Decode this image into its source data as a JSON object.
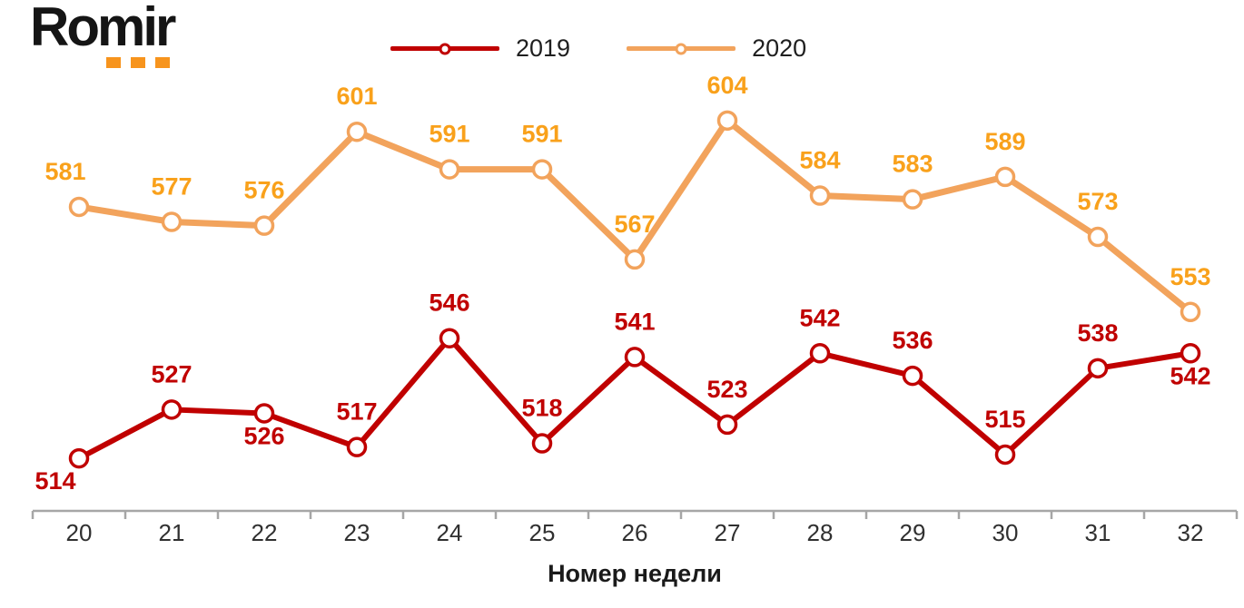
{
  "logo": {
    "text": "Romir",
    "dots_color": "#F7941D"
  },
  "chart_data": {
    "type": "line",
    "title": "",
    "xlabel": "Номер недели",
    "ylabel": "",
    "categories": [
      "20",
      "21",
      "22",
      "23",
      "24",
      "25",
      "26",
      "27",
      "28",
      "29",
      "30",
      "31",
      "32"
    ],
    "ylim": [
      500,
      610
    ],
    "grid": false,
    "legend_position": "top-center",
    "axis_color": "#A6A6A6",
    "tick_label_color": "#303030",
    "series": [
      {
        "name": "2019",
        "color": "#C00000",
        "label_color": "#C00000",
        "line_width": 6,
        "values": [
          514,
          527,
          526,
          517,
          546,
          518,
          541,
          523,
          542,
          536,
          515,
          538,
          542
        ],
        "label_side": [
          "below",
          "above",
          "below",
          "above",
          "above",
          "above",
          "above",
          "above",
          "above",
          "above",
          "above",
          "above",
          "below"
        ],
        "label_dx": [
          -26,
          0,
          0,
          0,
          0,
          0,
          0,
          0,
          0,
          0,
          0,
          0,
          0
        ]
      },
      {
        "name": "2020",
        "color": "#F2A35C",
        "label_color": "#F9A11B",
        "line_width": 7,
        "values": [
          581,
          577,
          576,
          601,
          591,
          591,
          567,
          604,
          584,
          583,
          589,
          573,
          553
        ],
        "label_side": [
          "above",
          "above",
          "above",
          "above",
          "above",
          "above",
          "above",
          "above",
          "above",
          "above",
          "above",
          "above",
          "above"
        ],
        "label_dx": [
          -15,
          0,
          0,
          0,
          0,
          0,
          0,
          0,
          0,
          0,
          0,
          0,
          0
        ]
      }
    ]
  }
}
